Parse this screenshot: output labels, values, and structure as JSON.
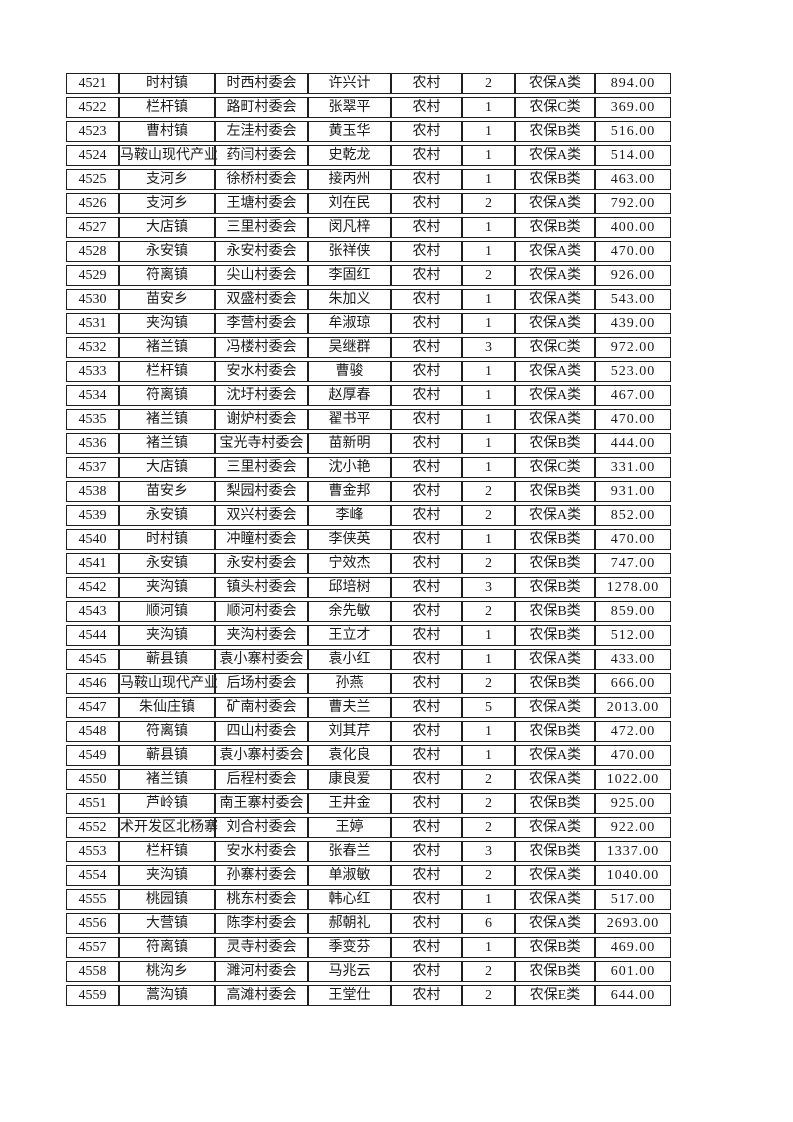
{
  "page": {
    "background": "#ffffff",
    "text_color": "#1a1a1a",
    "border_color": "#1f1f1f"
  },
  "table": {
    "rows": [
      {
        "seq": "4521",
        "town": "时村镇",
        "village": "时西村委会",
        "person": "许兴计",
        "area": "农村",
        "count": "2",
        "category": "农保A类",
        "amount": "894.00"
      },
      {
        "seq": "4522",
        "town": "栏杆镇",
        "village": "路町村委会",
        "person": "张翠平",
        "area": "农村",
        "count": "1",
        "category": "农保C类",
        "amount": "369.00"
      },
      {
        "seq": "4523",
        "town": "曹村镇",
        "village": "左洼村委会",
        "person": "黄玉华",
        "area": "农村",
        "count": "1",
        "category": "农保B类",
        "amount": "516.00"
      },
      {
        "seq": "4524",
        "town": "马鞍山现代产业",
        "village": "药闫村委会",
        "person": "史乾龙",
        "area": "农村",
        "count": "1",
        "category": "农保A类",
        "amount": "514.00"
      },
      {
        "seq": "4525",
        "town": "支河乡",
        "village": "徐桥村委会",
        "person": "接丙州",
        "area": "农村",
        "count": "1",
        "category": "农保B类",
        "amount": "463.00"
      },
      {
        "seq": "4526",
        "town": "支河乡",
        "village": "王塘村委会",
        "person": "刘在民",
        "area": "农村",
        "count": "2",
        "category": "农保A类",
        "amount": "792.00"
      },
      {
        "seq": "4527",
        "town": "大店镇",
        "village": "三里村委会",
        "person": "闵凡梓",
        "area": "农村",
        "count": "1",
        "category": "农保B类",
        "amount": "400.00"
      },
      {
        "seq": "4528",
        "town": "永安镇",
        "village": "永安村委会",
        "person": "张祥侠",
        "area": "农村",
        "count": "1",
        "category": "农保A类",
        "amount": "470.00"
      },
      {
        "seq": "4529",
        "town": "符离镇",
        "village": "尖山村委会",
        "person": "李固红",
        "area": "农村",
        "count": "2",
        "category": "农保A类",
        "amount": "926.00"
      },
      {
        "seq": "4530",
        "town": "苗安乡",
        "village": "双盛村委会",
        "person": "朱加义",
        "area": "农村",
        "count": "1",
        "category": "农保A类",
        "amount": "543.00"
      },
      {
        "seq": "4531",
        "town": "夹沟镇",
        "village": "李营村委会",
        "person": "牟淑琼",
        "area": "农村",
        "count": "1",
        "category": "农保A类",
        "amount": "439.00"
      },
      {
        "seq": "4532",
        "town": "褚兰镇",
        "village": "冯楼村委会",
        "person": "吴继群",
        "area": "农村",
        "count": "3",
        "category": "农保C类",
        "amount": "972.00"
      },
      {
        "seq": "4533",
        "town": "栏杆镇",
        "village": "安水村委会",
        "person": "曹骏",
        "area": "农村",
        "count": "1",
        "category": "农保A类",
        "amount": "523.00"
      },
      {
        "seq": "4534",
        "town": "符离镇",
        "village": "沈圩村委会",
        "person": "赵厚春",
        "area": "农村",
        "count": "1",
        "category": "农保A类",
        "amount": "467.00"
      },
      {
        "seq": "4535",
        "town": "褚兰镇",
        "village": "谢炉村委会",
        "person": "翟书平",
        "area": "农村",
        "count": "1",
        "category": "农保A类",
        "amount": "470.00"
      },
      {
        "seq": "4536",
        "town": "褚兰镇",
        "village": "宝光寺村委会",
        "person": "苗新明",
        "area": "农村",
        "count": "1",
        "category": "农保B类",
        "amount": "444.00"
      },
      {
        "seq": "4537",
        "town": "大店镇",
        "village": "三里村委会",
        "person": "沈小艳",
        "area": "农村",
        "count": "1",
        "category": "农保C类",
        "amount": "331.00"
      },
      {
        "seq": "4538",
        "town": "苗安乡",
        "village": "梨园村委会",
        "person": "曹金邦",
        "area": "农村",
        "count": "2",
        "category": "农保B类",
        "amount": "931.00"
      },
      {
        "seq": "4539",
        "town": "永安镇",
        "village": "双兴村委会",
        "person": "李峰",
        "area": "农村",
        "count": "2",
        "category": "农保A类",
        "amount": "852.00"
      },
      {
        "seq": "4540",
        "town": "时村镇",
        "village": "冲瞳村委会",
        "person": "李侠英",
        "area": "农村",
        "count": "1",
        "category": "农保B类",
        "amount": "470.00"
      },
      {
        "seq": "4541",
        "town": "永安镇",
        "village": "永安村委会",
        "person": "宁效杰",
        "area": "农村",
        "count": "2",
        "category": "农保B类",
        "amount": "747.00"
      },
      {
        "seq": "4542",
        "town": "夹沟镇",
        "village": "镇头村委会",
        "person": "邱培树",
        "area": "农村",
        "count": "3",
        "category": "农保B类",
        "amount": "1278.00"
      },
      {
        "seq": "4543",
        "town": "顺河镇",
        "village": "顺河村委会",
        "person": "余先敏",
        "area": "农村",
        "count": "2",
        "category": "农保B类",
        "amount": "859.00"
      },
      {
        "seq": "4544",
        "town": "夹沟镇",
        "village": "夹沟村委会",
        "person": "王立才",
        "area": "农村",
        "count": "1",
        "category": "农保B类",
        "amount": "512.00"
      },
      {
        "seq": "4545",
        "town": "蕲县镇",
        "village": "袁小寨村委会",
        "person": "袁小红",
        "area": "农村",
        "count": "1",
        "category": "农保A类",
        "amount": "433.00"
      },
      {
        "seq": "4546",
        "town": "马鞍山现代产业",
        "village": "后场村委会",
        "person": "孙燕",
        "area": "农村",
        "count": "2",
        "category": "农保B类",
        "amount": "666.00"
      },
      {
        "seq": "4547",
        "town": "朱仙庄镇",
        "village": "矿南村委会",
        "person": "曹夫兰",
        "area": "农村",
        "count": "5",
        "category": "农保A类",
        "amount": "2013.00"
      },
      {
        "seq": "4548",
        "town": "符离镇",
        "village": "四山村委会",
        "person": "刘其芹",
        "area": "农村",
        "count": "1",
        "category": "农保B类",
        "amount": "472.00"
      },
      {
        "seq": "4549",
        "town": "蕲县镇",
        "village": "袁小寨村委会",
        "person": "袁化良",
        "area": "农村",
        "count": "1",
        "category": "农保A类",
        "amount": "470.00"
      },
      {
        "seq": "4550",
        "town": "褚兰镇",
        "village": "后程村委会",
        "person": "康良爱",
        "area": "农村",
        "count": "2",
        "category": "农保A类",
        "amount": "1022.00"
      },
      {
        "seq": "4551",
        "town": "芦岭镇",
        "village": "南王寨村委会",
        "person": "王井金",
        "area": "农村",
        "count": "2",
        "category": "农保B类",
        "amount": "925.00"
      },
      {
        "seq": "4552",
        "town": "术开发区北杨寨",
        "village": "刘合村委会",
        "person": "王婷",
        "area": "农村",
        "count": "2",
        "category": "农保A类",
        "amount": "922.00"
      },
      {
        "seq": "4553",
        "town": "栏杆镇",
        "village": "安水村委会",
        "person": "张春兰",
        "area": "农村",
        "count": "3",
        "category": "农保B类",
        "amount": "1337.00"
      },
      {
        "seq": "4554",
        "town": "夹沟镇",
        "village": "孙寨村委会",
        "person": "单淑敏",
        "area": "农村",
        "count": "2",
        "category": "农保A类",
        "amount": "1040.00"
      },
      {
        "seq": "4555",
        "town": "桃园镇",
        "village": "桃东村委会",
        "person": "韩心红",
        "area": "农村",
        "count": "1",
        "category": "农保A类",
        "amount": "517.00"
      },
      {
        "seq": "4556",
        "town": "大营镇",
        "village": "陈李村委会",
        "person": "郝朝礼",
        "area": "农村",
        "count": "6",
        "category": "农保A类",
        "amount": "2693.00"
      },
      {
        "seq": "4557",
        "town": "符离镇",
        "village": "灵寺村委会",
        "person": "季变芬",
        "area": "农村",
        "count": "1",
        "category": "农保B类",
        "amount": "469.00"
      },
      {
        "seq": "4558",
        "town": "桃沟乡",
        "village": "濉河村委会",
        "person": "马兆云",
        "area": "农村",
        "count": "2",
        "category": "农保B类",
        "amount": "601.00"
      },
      {
        "seq": "4559",
        "town": "蒿沟镇",
        "village": "高滩村委会",
        "person": "王堂仕",
        "area": "农村",
        "count": "2",
        "category": "农保E类",
        "amount": "644.00"
      }
    ]
  }
}
